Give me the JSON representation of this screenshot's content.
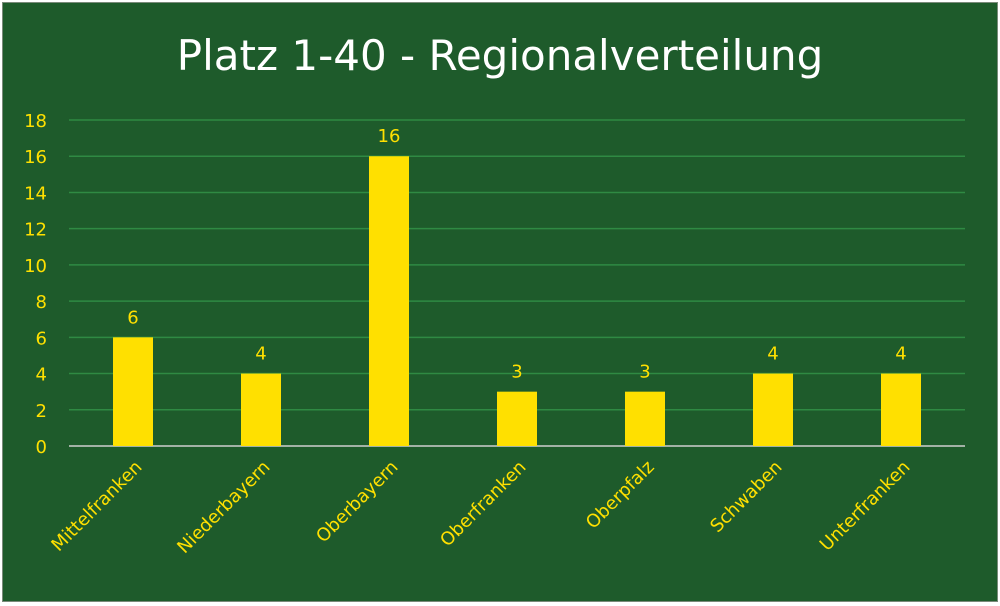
{
  "chart_data": {
    "type": "bar",
    "title": "Platz 1-40 - Regionalverteilung",
    "categories": [
      "Mittelfranken",
      "Niederbayern",
      "Oberbayern",
      "Oberfranken",
      "Oberpfalz",
      "Schwaben",
      "Unterfranken"
    ],
    "values": [
      6,
      4,
      16,
      3,
      3,
      4,
      4
    ],
    "ylim": [
      0,
      18
    ],
    "yticks": [
      0,
      2,
      4,
      6,
      8,
      10,
      12,
      14,
      16,
      18
    ],
    "grid": true,
    "data_labels": true,
    "colors": {
      "background": "#1e5b2b",
      "bar": "#ffe000",
      "text": "#ffe000",
      "title": "#ffffff",
      "grid": "#2f8a43",
      "axis": "#cfcfcf"
    }
  }
}
